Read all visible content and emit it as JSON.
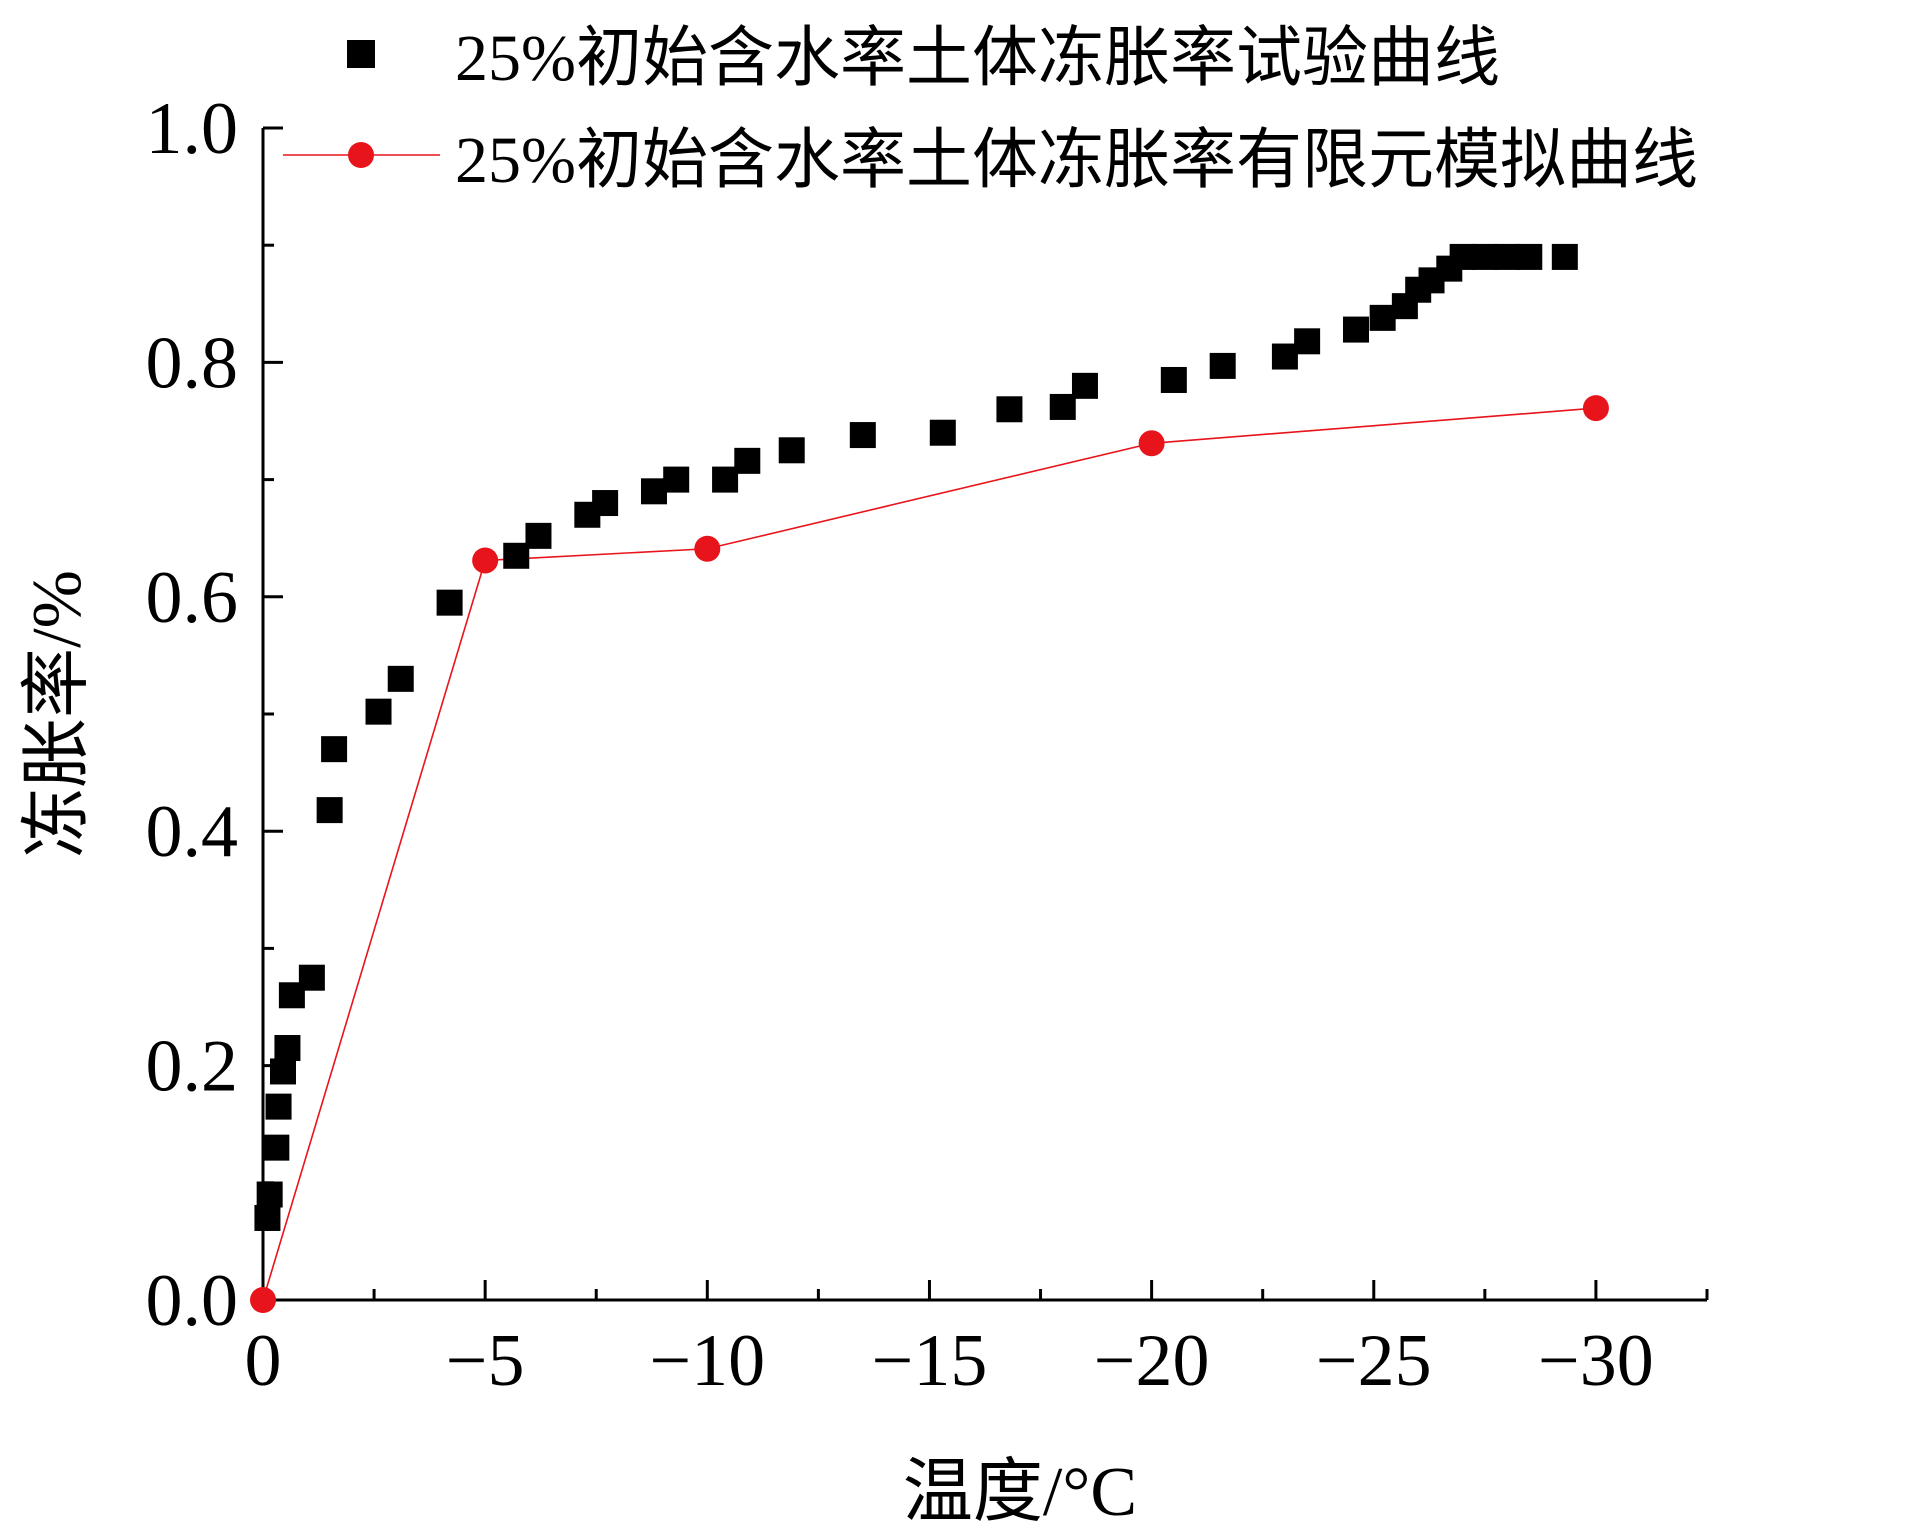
{
  "chart_data": {
    "type": "scatter",
    "xlabel": "温度/°C",
    "ylabel": "冻胀率/%",
    "xlim": [
      0,
      -32.5
    ],
    "ylim": [
      0,
      1.0
    ],
    "x_ticks": [
      0,
      -5,
      -10,
      -15,
      -20,
      -25,
      -30
    ],
    "x_tick_labels": [
      "0",
      "−5",
      "−10",
      "−15",
      "−20",
      "−25",
      "−30"
    ],
    "y_ticks": [
      0.0,
      0.2,
      0.4,
      0.6,
      0.8,
      1.0
    ],
    "y_tick_labels": [
      "0.0",
      "0.2",
      "0.4",
      "0.6",
      "0.8",
      "1.0"
    ],
    "grid": false,
    "legend_position": "top",
    "series": [
      {
        "name": "25%初始含水率土体冻胀率试验曲线",
        "marker": "square",
        "line": false,
        "color": "#000000",
        "points": [
          [
            -0.1,
            0.07
          ],
          [
            -0.15,
            0.09
          ],
          [
            -0.3,
            0.13
          ],
          [
            -0.35,
            0.165
          ],
          [
            -0.45,
            0.195
          ],
          [
            -0.55,
            0.215
          ],
          [
            -0.65,
            0.26
          ],
          [
            -1.1,
            0.275
          ],
          [
            -1.5,
            0.418
          ],
          [
            -1.6,
            0.47
          ],
          [
            -2.6,
            0.502
          ],
          [
            -3.1,
            0.53
          ],
          [
            -4.2,
            0.595
          ],
          [
            -5.7,
            0.635
          ],
          [
            -6.2,
            0.652
          ],
          [
            -7.3,
            0.67
          ],
          [
            -7.7,
            0.68
          ],
          [
            -8.8,
            0.69
          ],
          [
            -9.3,
            0.7
          ],
          [
            -10.4,
            0.7
          ],
          [
            -10.9,
            0.716
          ],
          [
            -11.9,
            0.725
          ],
          [
            -13.5,
            0.738
          ],
          [
            -15.3,
            0.74
          ],
          [
            -16.8,
            0.76
          ],
          [
            -18.0,
            0.762
          ],
          [
            -18.5,
            0.78
          ],
          [
            -20.5,
            0.785
          ],
          [
            -21.6,
            0.797
          ],
          [
            -23.0,
            0.805
          ],
          [
            -23.5,
            0.818
          ],
          [
            -24.6,
            0.828
          ],
          [
            -25.2,
            0.838
          ],
          [
            -25.7,
            0.848
          ],
          [
            -26.0,
            0.862
          ],
          [
            -26.3,
            0.87
          ],
          [
            -26.7,
            0.88
          ],
          [
            -27.0,
            0.89
          ],
          [
            -27.5,
            0.89
          ],
          [
            -28.0,
            0.89
          ],
          [
            -28.5,
            0.89
          ],
          [
            -29.3,
            0.89
          ]
        ]
      },
      {
        "name": "25%初始含水率土体冻胀率有限元模拟曲线",
        "marker": "circle",
        "line": true,
        "color": "#e8141b",
        "points": [
          [
            0,
            0.0
          ],
          [
            -5,
            0.631
          ],
          [
            -10,
            0.641
          ],
          [
            -20,
            0.731
          ],
          [
            -30,
            0.761
          ]
        ]
      }
    ]
  }
}
